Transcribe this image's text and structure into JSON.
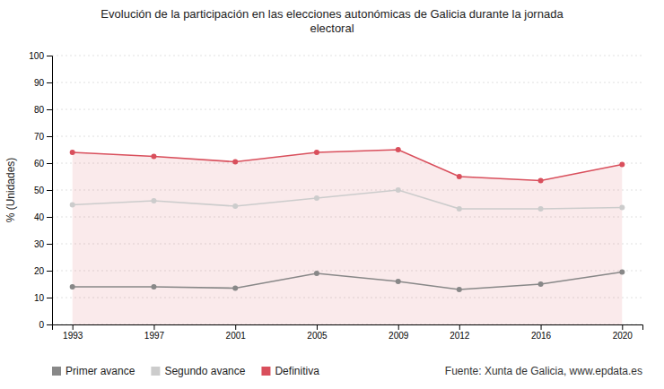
{
  "chart_data": {
    "type": "line",
    "title": "Evolución de la participación en las elecciones autonómicas de Galicia durante la jornada\nelectoral",
    "ylabel": "% (Unidades)",
    "x": [
      1993,
      1997,
      2001,
      2005,
      2009,
      2012,
      2016,
      2020
    ],
    "series": [
      {
        "name": "Primer avance",
        "color": "#888888",
        "type": "line",
        "marker": "circle",
        "values": [
          14.0,
          14.0,
          13.5,
          19.0,
          16.0,
          13.0,
          15.0,
          19.5
        ]
      },
      {
        "name": "Segundo avance",
        "color": "#cccccc",
        "type": "line",
        "marker": "circle",
        "values": [
          44.5,
          46.0,
          44.0,
          47.0,
          50.0,
          43.0,
          43.0,
          43.5
        ]
      },
      {
        "name": "Definitiva",
        "color": "#d94f5c",
        "type": "area",
        "marker": "circle",
        "values": [
          64.0,
          62.5,
          60.5,
          64.0,
          65.0,
          55.0,
          53.5,
          59.5
        ]
      }
    ],
    "xlim": [
      1992,
      2021
    ],
    "xticks": [
      1993,
      1997,
      2001,
      2005,
      2009,
      2012,
      2016,
      2020
    ],
    "ylim": [
      0,
      100
    ],
    "yticks": [
      0,
      10,
      20,
      30,
      40,
      50,
      60,
      70,
      80,
      90,
      100
    ],
    "grid": true,
    "legend": "bottom",
    "annotations": [
      "Fuente: Xunta de Galicia, www.epdata.es"
    ]
  }
}
